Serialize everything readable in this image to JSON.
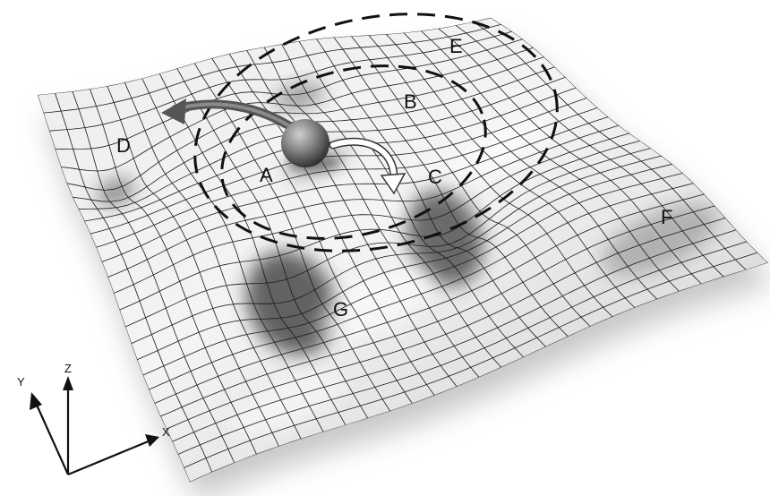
{
  "surface": {
    "region_labels": [
      "A",
      "B",
      "C",
      "D",
      "E",
      "F",
      "G"
    ]
  },
  "axes": {
    "x_label": "X",
    "y_label": "Y",
    "z_label": "Z"
  },
  "colors": {
    "surface_light": "#f1f1f1",
    "surface_dark": "#3a3a3a",
    "grid_line": "#1a1a1a",
    "dashed_ring": "#111111",
    "arrow_dark": "#4a4a4a",
    "arrow_white": "#ffffff"
  }
}
